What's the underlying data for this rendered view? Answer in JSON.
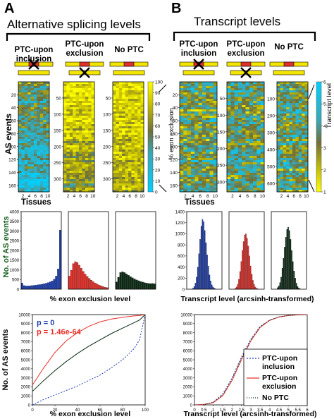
{
  "panels": {
    "A": {
      "letter": "A",
      "title": "Alternative splicing levels",
      "groups": [
        "PTC-upon inclusion",
        "PTC-upon exclusion",
        "No PTC"
      ],
      "heatmap_ylabel": "AS events",
      "heatmap_xlabel": "Tissues",
      "colorbar_label": "% exon exclusion",
      "colorbar_ticks": [
        "100",
        "90",
        "80",
        "70",
        "60",
        "50",
        "40",
        "30",
        "20",
        "10",
        "0"
      ],
      "yticks": [
        [
          "20",
          "40",
          "60",
          "80",
          "100",
          "120",
          "140",
          "160"
        ],
        [
          "50",
          "100",
          "150",
          "200",
          "250",
          "300"
        ],
        [
          "50",
          "100",
          "150",
          "200",
          "250",
          "300"
        ]
      ],
      "xticks": [
        "2",
        "4",
        "6",
        "8",
        "10"
      ],
      "hist_ylabel": "No. of AS events",
      "hist_xlabel": "% exon exclusion level",
      "hist_yticks": [
        "0",
        "500",
        "1000",
        "1500",
        "2000",
        "2500",
        "3000",
        "3500",
        "4000"
      ],
      "cum_ylabel": "No. of AS events",
      "cum_xlabel": "% exon exclusion level",
      "stats": [
        "p = 0",
        "p = 1.46e-64"
      ]
    },
    "B": {
      "letter": "B",
      "title": "Transcript levels",
      "groups": [
        "PTC-upon inclusion",
        "PTC-upon exclusion",
        "No PTC"
      ],
      "heatmap_xlabel": "Tissues",
      "colorbar_label": "Transcript level",
      "colorbar_ticks": [
        "6",
        "5",
        "4",
        "3",
        "2",
        "1"
      ],
      "yticks": [
        [
          "20",
          "40",
          "60",
          "80",
          "100",
          "120",
          "140",
          "160"
        ],
        [
          "50",
          "100",
          "150",
          "200",
          "250",
          "300"
        ],
        [
          "100",
          "200",
          "300",
          "400",
          "500",
          "600"
        ]
      ],
      "xticks": [
        "2",
        "4",
        "6",
        "8",
        "10"
      ],
      "hist_yticks": [
        "0",
        "200",
        "400",
        "600",
        "800",
        "1000",
        "1200",
        "1400"
      ],
      "hist_xlabel": "Transcript level (arcsinh-transformed)",
      "cum_xlabel": "Transcript level (arcsinh-transformed)",
      "legend": [
        "PTC-upon inclusion",
        "PTC-upon exclusion",
        "No PTC"
      ]
    }
  },
  "colors": {
    "exon_box": "#f2e500",
    "ptc_mark": "#e0302a",
    "ptc_inclusion": "#1f3fb0",
    "ptc_exclusion": "#e8302a",
    "no_ptc": "#0b2a14",
    "heat_high": "#ffff00",
    "heat_low": "#00c8e8"
  },
  "chart_data": [
    {
      "type": "heatmap",
      "title": "PTC-upon inclusion",
      "xlabel": "Tissues",
      "ylabel": "AS events",
      "x": [
        1,
        2,
        3,
        4,
        5,
        6,
        7,
        8,
        9,
        10
      ],
      "y_range": [
        1,
        170
      ],
      "zlabel": "% exon exclusion",
      "zlim": [
        0,
        100
      ]
    },
    {
      "type": "heatmap",
      "title": "PTC-upon exclusion",
      "xlabel": "Tissues",
      "x": [
        1,
        2,
        3,
        4,
        5,
        6,
        7,
        8,
        9,
        10
      ],
      "y_range": [
        1,
        340
      ],
      "zlabel": "% exon exclusion",
      "zlim": [
        0,
        100
      ]
    },
    {
      "type": "heatmap",
      "title": "No PTC",
      "xlabel": "Tissues",
      "x": [
        1,
        2,
        3,
        4,
        5,
        6,
        7,
        8,
        9,
        10
      ],
      "y_range": [
        1,
        340
      ],
      "zlabel": "% exon exclusion",
      "zlim": [
        0,
        100
      ]
    },
    {
      "type": "heatmap",
      "title": "PTC-upon inclusion",
      "xlabel": "Tissues",
      "x": [
        1,
        2,
        3,
        4,
        5,
        6,
        7,
        8,
        9,
        10
      ],
      "y_range": [
        1,
        170
      ],
      "zlabel": "Transcript level",
      "zlim": [
        1,
        6
      ]
    },
    {
      "type": "heatmap",
      "title": "PTC-upon exclusion",
      "xlabel": "Tissues",
      "x": [
        1,
        2,
        3,
        4,
        5,
        6,
        7,
        8,
        9,
        10
      ],
      "y_range": [
        1,
        330
      ],
      "zlabel": "Transcript level",
      "zlim": [
        1,
        6
      ]
    },
    {
      "type": "heatmap",
      "title": "No PTC",
      "xlabel": "Tissues",
      "x": [
        1,
        2,
        3,
        4,
        5,
        6,
        7,
        8,
        9,
        10
      ],
      "y_range": [
        1,
        650
      ],
      "zlabel": "Transcript level",
      "zlim": [
        1,
        6
      ]
    },
    {
      "type": "bar",
      "title": "PTC-upon inclusion",
      "xlabel": "% exon exclusion level",
      "ylabel": "No. of AS events",
      "ylim": [
        0,
        4000
      ],
      "xlim": [
        0,
        100
      ],
      "x": [
        2.5,
        7.5,
        12.5,
        17.5,
        22.5,
        27.5,
        32.5,
        37.5,
        42.5,
        47.5,
        52.5,
        57.5,
        62.5,
        67.5,
        72.5,
        77.5,
        82.5,
        87.5,
        92.5,
        97.5
      ],
      "series": [
        {
          "name": "PTC-upon inclusion",
          "values": [
            320,
            190,
            170,
            170,
            180,
            190,
            200,
            210,
            230,
            240,
            260,
            280,
            310,
            340,
            380,
            430,
            520,
            680,
            1050,
            3050
          ]
        }
      ]
    },
    {
      "type": "bar",
      "title": "PTC-upon exclusion",
      "xlabel": "% exon exclusion level",
      "ylim": [
        0,
        4000
      ],
      "xlim": [
        0,
        100
      ],
      "x": [
        2.5,
        7.5,
        12.5,
        17.5,
        22.5,
        27.5,
        32.5,
        37.5,
        42.5,
        47.5,
        52.5,
        57.5,
        62.5,
        67.5,
        72.5,
        77.5,
        82.5,
        87.5,
        92.5,
        97.5
      ],
      "series": [
        {
          "name": "PTC-upon exclusion",
          "values": [
            680,
            980,
            1320,
            1420,
            1380,
            1240,
            1080,
            920,
            780,
            660,
            560,
            470,
            390,
            320,
            260,
            210,
            170,
            130,
            100,
            80
          ]
        }
      ]
    },
    {
      "type": "bar",
      "title": "No PTC",
      "xlabel": "% exon exclusion level",
      "ylim": [
        0,
        4000
      ],
      "xlim": [
        0,
        100
      ],
      "x": [
        2.5,
        7.5,
        12.5,
        17.5,
        22.5,
        27.5,
        32.5,
        37.5,
        42.5,
        47.5,
        52.5,
        57.5,
        62.5,
        67.5,
        72.5,
        77.5,
        82.5,
        87.5,
        92.5,
        97.5
      ],
      "series": [
        {
          "name": "No PTC",
          "values": [
            380,
            620,
            860,
            900,
            860,
            790,
            720,
            650,
            590,
            530,
            480,
            440,
            400,
            370,
            340,
            320,
            300,
            290,
            300,
            280
          ]
        }
      ]
    },
    {
      "type": "bar",
      "title": "PTC-upon inclusion",
      "xlabel": "Transcript level (arcsinh-transformed)",
      "ylim": [
        0,
        1400
      ],
      "xlim": [
        0,
        6
      ],
      "x": [
        1.1,
        1.3,
        1.5,
        1.7,
        1.9,
        2.1,
        2.3,
        2.5,
        2.7,
        2.9,
        3.1,
        3.3,
        3.5,
        3.7,
        3.9,
        4.1,
        4.3,
        4.5,
        4.7,
        4.9
      ],
      "series": [
        {
          "name": "PTC-upon inclusion",
          "values": [
            20,
            50,
            110,
            220,
            400,
            640,
            900,
            1140,
            1260,
            1220,
            1060,
            840,
            620,
            420,
            260,
            150,
            80,
            40,
            20,
            10
          ]
        }
      ]
    },
    {
      "type": "bar",
      "title": "PTC-upon exclusion",
      "xlabel": "Transcript level (arcsinh-transformed)",
      "ylim": [
        0,
        1400
      ],
      "xlim": [
        0,
        6
      ],
      "x": [
        1.1,
        1.3,
        1.5,
        1.7,
        1.9,
        2.1,
        2.3,
        2.5,
        2.7,
        2.9,
        3.1,
        3.3,
        3.5,
        3.7,
        3.9,
        4.1,
        4.3,
        4.5,
        4.7,
        4.9
      ],
      "series": [
        {
          "name": "PTC-upon exclusion",
          "values": [
            20,
            40,
            90,
            180,
            320,
            500,
            700,
            860,
            980,
            1000,
            920,
            780,
            600,
            420,
            270,
            160,
            90,
            40,
            20,
            10
          ]
        }
      ]
    },
    {
      "type": "bar",
      "title": "No PTC",
      "xlabel": "Transcript level (arcsinh-transformed)",
      "ylim": [
        0,
        1400
      ],
      "xlim": [
        0,
        6
      ],
      "x": [
        1.1,
        1.3,
        1.5,
        1.7,
        1.9,
        2.1,
        2.3,
        2.5,
        2.7,
        2.9,
        3.1,
        3.3,
        3.5,
        3.7,
        3.9,
        4.1,
        4.3,
        4.5,
        4.7,
        4.9
      ],
      "series": [
        {
          "name": "No PTC",
          "values": [
            30,
            60,
            120,
            220,
            380,
            560,
            760,
            940,
            1080,
            1120,
            1060,
            900,
            700,
            500,
            330,
            200,
            110,
            50,
            25,
            10
          ]
        }
      ]
    },
    {
      "type": "line",
      "xlabel": "% exon exclusion level",
      "ylabel": "No. of AS events",
      "xlim": [
        0,
        100
      ],
      "ylim": [
        0,
        10000
      ],
      "x": [
        0,
        10,
        20,
        30,
        40,
        50,
        60,
        70,
        80,
        90,
        95,
        100
      ],
      "series": [
        {
          "name": "p = 0",
          "values": [
            0,
            600,
            1100,
            1600,
            2100,
            2700,
            3300,
            4100,
            5000,
            6200,
            7200,
            10000
          ]
        },
        {
          "name": "p = 1.46e-64",
          "values": [
            2200,
            4100,
            5800,
            7100,
            8000,
            8700,
            9200,
            9500,
            9700,
            9850,
            9900,
            10000
          ]
        },
        {
          "name": "No PTC",
          "values": [
            1500,
            2700,
            3800,
            4800,
            5700,
            6500,
            7200,
            7900,
            8500,
            9100,
            9400,
            10000
          ]
        }
      ]
    },
    {
      "type": "line",
      "xlabel": "Transcript level (arcsinh-transformed)",
      "xlim": [
        0,
        6
      ],
      "ylim": [
        0,
        10000
      ],
      "x": [
        0,
        0.5,
        1,
        1.5,
        2,
        2.5,
        3,
        3.5,
        4,
        4.5,
        5,
        5.5,
        6
      ],
      "series": [
        {
          "name": "PTC-upon inclusion",
          "values": [
            0,
            50,
            300,
            1200,
            3000,
            5300,
            7300,
            8700,
            9400,
            9750,
            9900,
            9970,
            10000
          ]
        },
        {
          "name": "PTC-upon exclusion",
          "values": [
            0,
            40,
            250,
            1000,
            2700,
            5000,
            7100,
            8600,
            9350,
            9730,
            9900,
            9970,
            10000
          ]
        },
        {
          "name": "No PTC",
          "values": [
            0,
            45,
            280,
            1100,
            2850,
            5150,
            7200,
            8650,
            9380,
            9740,
            9900,
            9970,
            10000
          ]
        }
      ]
    }
  ]
}
